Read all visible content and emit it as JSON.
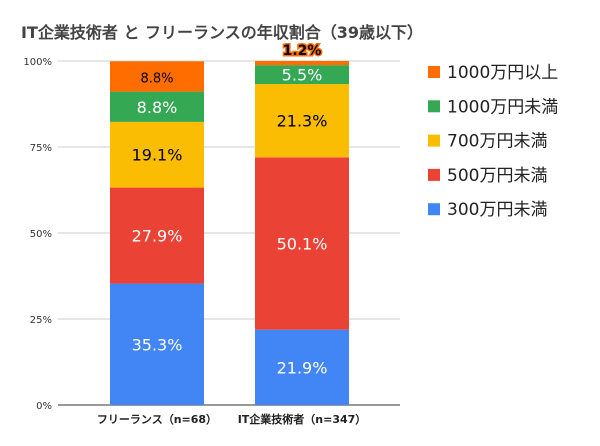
{
  "chart_data": {
    "type": "bar",
    "stacked": true,
    "title": "IT企業技術者 と フリーランスの年収割合（39歳以下）",
    "categories": [
      "フリーランス（n=68）",
      "IT企業技術者（n=347）"
    ],
    "series": [
      {
        "name": "300万円未満",
        "color": "#4285f4",
        "values": [
          35.3,
          21.9
        ],
        "labels": [
          "35.3%",
          "21.9%"
        ]
      },
      {
        "name": "500万円未満",
        "color": "#ea4335",
        "values": [
          27.9,
          50.1
        ],
        "labels": [
          "27.9%",
          "50.1%"
        ]
      },
      {
        "name": "700万円未満",
        "color": "#fbbc04",
        "values": [
          19.1,
          21.3
        ],
        "labels": [
          "19.1%",
          "21.3%"
        ]
      },
      {
        "name": "1000万円未満",
        "color": "#34a853",
        "values": [
          8.8,
          5.5
        ],
        "labels": [
          "8.8%",
          "5.5%"
        ]
      },
      {
        "name": "1000万円以上",
        "color": "#ff6d01",
        "values": [
          8.8,
          1.2
        ],
        "labels": [
          "8.8%",
          "1.2%"
        ]
      }
    ],
    "yticks": [
      "0%",
      "25%",
      "50%",
      "75%",
      "100%"
    ],
    "ylim": [
      0,
      100
    ],
    "grid": true,
    "legend": "right"
  }
}
